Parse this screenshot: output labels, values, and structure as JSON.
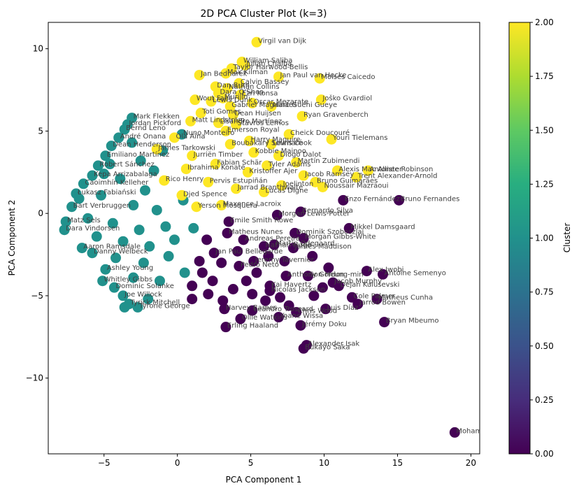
{
  "chart_data": {
    "type": "scatter",
    "title": "2D PCA Cluster Plot (k=3)",
    "xlabel": "PCA Component 1",
    "ylabel": "PCA Component 2",
    "xlim": [
      -8.8,
      20.6
    ],
    "ylim": [
      -14.6,
      11.6
    ],
    "xticks": [
      -5,
      0,
      5,
      10,
      15,
      20
    ],
    "yticks": [
      -10,
      -5,
      0,
      5,
      10
    ],
    "xtick_labels": [
      "−5",
      "0",
      "5",
      "10",
      "15",
      "20"
    ],
    "ytick_labels": [
      "−10",
      "−5",
      "0",
      "5",
      "10"
    ],
    "grid": false,
    "colormap": "viridis",
    "colorbar": {
      "label": "Cluster",
      "range": [
        0,
        2
      ],
      "ticks": [
        0,
        0.25,
        0.5,
        0.75,
        1.0,
        1.25,
        1.5,
        1.75,
        2.0
      ],
      "tick_labels": [
        "0.00",
        "0.25",
        "0.50",
        "0.75",
        "1.00",
        "1.25",
        "1.50",
        "1.75",
        "2.00"
      ]
    },
    "cluster_colors": [
      "#440154",
      "#21918c",
      "#fde725"
    ],
    "points": [
      {
        "x": 5.4,
        "y": 10.4,
        "cluster": 2,
        "label": "Virgil van Dijk"
      },
      {
        "x": 4.4,
        "y": 9.2,
        "cluster": 2,
        "label": "William Saliba"
      },
      {
        "x": 4.6,
        "y": 9.0,
        "cluster": 2,
        "label": "Julian Chalba"
      },
      {
        "x": 3.7,
        "y": 8.8,
        "cluster": 2,
        "label": "Taylor Harwood-Bellis"
      },
      {
        "x": 1.5,
        "y": 8.4,
        "cluster": 2,
        "label": "Jan Bednarek"
      },
      {
        "x": 3.3,
        "y": 8.5,
        "cluster": 2,
        "label": "Max Kilman"
      },
      {
        "x": 6.9,
        "y": 8.3,
        "cluster": 2,
        "label": "Jan Paul van Hecke"
      },
      {
        "x": 9.7,
        "y": 8.2,
        "cluster": 2,
        "label": "Moisés Caicedo"
      },
      {
        "x": 4.2,
        "y": 7.9,
        "cluster": 2,
        "label": "Calvin Bassey"
      },
      {
        "x": 2.6,
        "y": 7.7,
        "cluster": 2,
        "label": "Dan Burn"
      },
      {
        "x": 3.4,
        "y": 7.6,
        "cluster": 2,
        "label": "Nathan Collins"
      },
      {
        "x": 2.8,
        "y": 7.3,
        "cluster": 2,
        "label": "Dara O'Shea"
      },
      {
        "x": 4.3,
        "y": 7.2,
        "cluster": 2,
        "label": "Ezri Konsa"
      },
      {
        "x": 3.1,
        "y": 7.0,
        "cluster": 2,
        "label": "Murillo"
      },
      {
        "x": 1.2,
        "y": 6.9,
        "cluster": 2,
        "label": "Wout Faes"
      },
      {
        "x": 9.8,
        "y": 6.9,
        "cluster": 2,
        "label": "Joško Gvardiol"
      },
      {
        "x": 2.3,
        "y": 6.8,
        "cluster": 2,
        "label": "Lewis Dunk"
      },
      {
        "x": 5.1,
        "y": 6.7,
        "cluster": 2,
        "label": "Oscar Mezarate"
      },
      {
        "x": 3.6,
        "y": 6.5,
        "cluster": 2,
        "label": "Gabriel Magalhães"
      },
      {
        "x": 6.4,
        "y": 6.5,
        "cluster": 2,
        "label": "Marc Guéhi Gueye"
      },
      {
        "x": 1.6,
        "y": 6.1,
        "cluster": 2,
        "label": "Toti Gomes"
      },
      {
        "x": 3.8,
        "y": 6.0,
        "cluster": 2,
        "label": "Dean Huijsen"
      },
      {
        "x": 8.5,
        "y": 5.9,
        "cluster": 2,
        "label": "Ryan Gravenberch"
      },
      {
        "x": 0.9,
        "y": 5.6,
        "cluster": 2,
        "label": "Matt Lindström"
      },
      {
        "x": 2.8,
        "y": 5.5,
        "cluster": 2,
        "label": "Lisandro Martínez"
      },
      {
        "x": 4.0,
        "y": 5.4,
        "cluster": 2,
        "label": "Stávros Lemos"
      },
      {
        "x": 7.6,
        "y": 4.8,
        "cluster": 2,
        "label": "Cheick Doucouré"
      },
      {
        "x": 10.5,
        "y": 4.5,
        "cluster": 2,
        "label": "Youri Tielemans"
      },
      {
        "x": 6.4,
        "y": 4.2,
        "cluster": 2,
        "label": "Lewis Cook"
      },
      {
        "x": 3.6,
        "y": 4.2,
        "cluster": 2,
        "label": "Boubakary Soumaré"
      },
      {
        "x": 5.2,
        "y": 3.7,
        "cluster": 2,
        "label": "Kobbie Mainoo"
      },
      {
        "x": 6.9,
        "y": 3.5,
        "cluster": 2,
        "label": "Diogo Dalot"
      },
      {
        "x": 8.1,
        "y": 3.1,
        "cluster": 2,
        "label": "Martín Zubimendi"
      },
      {
        "x": 10.9,
        "y": 2.6,
        "cluster": 2,
        "label": "Alexis Mac Allister"
      },
      {
        "x": 13.0,
        "y": 2.6,
        "cluster": 2,
        "label": "Antonee Robinson"
      },
      {
        "x": 12.2,
        "y": 2.2,
        "cluster": 2,
        "label": "Trent Alexander-Arnold"
      },
      {
        "x": 9.4,
        "y": 1.9,
        "cluster": 2,
        "label": "Bruno Guimarães"
      },
      {
        "x": 7.1,
        "y": 1.7,
        "cluster": 2,
        "label": "Joelinton"
      },
      {
        "x": 9.9,
        "y": 1.6,
        "cluster": 2,
        "label": "Noussair Mazraoui"
      },
      {
        "x": 4.0,
        "y": 1.5,
        "cluster": 2,
        "label": "Jarrad Branthwaite"
      },
      {
        "x": 2.1,
        "y": 1.9,
        "cluster": 2,
        "label": "Pervis Estupiñán"
      },
      {
        "x": 0.6,
        "y": 2.7,
        "cluster": 2,
        "label": "Ibrahima Konaté"
      },
      {
        "x": 5.9,
        "y": 1.3,
        "cluster": 2,
        "label": "Lucas Digne"
      },
      {
        "x": 1.0,
        "y": 3.5,
        "cluster": 2,
        "label": "Jurriën Timber"
      },
      {
        "x": -0.2,
        "y": 4.6,
        "cluster": 2,
        "label": "Ola Aina"
      },
      {
        "x": -1.4,
        "y": 3.9,
        "cluster": 2,
        "label": "James Tarkowski"
      },
      {
        "x": 0.3,
        "y": 1.1,
        "cluster": 2,
        "label": "Djed Spence"
      },
      {
        "x": 2.6,
        "y": 3.0,
        "cluster": 2,
        "label": "Fabian Schär"
      },
      {
        "x": 4.8,
        "y": 2.5,
        "cluster": 2,
        "label": "Kristoffer Ajer"
      },
      {
        "x": 6.1,
        "y": 2.9,
        "cluster": 2,
        "label": "Tyler Adams"
      },
      {
        "x": 8.6,
        "y": 2.3,
        "cluster": 2,
        "label": "Jacob Ramsey"
      },
      {
        "x": 3.0,
        "y": 0.5,
        "cluster": 2,
        "label": "Maxence Lacroix"
      },
      {
        "x": 1.3,
        "y": 0.4,
        "cluster": 2,
        "label": "Yerson Mosquera"
      },
      {
        "x": -0.9,
        "y": 2.0,
        "cluster": 2,
        "label": "Rico Henry"
      },
      {
        "x": 3.3,
        "y": 5.0,
        "cluster": 2,
        "label": "Emerson Royal"
      },
      {
        "x": 4.9,
        "y": 4.4,
        "cluster": 2,
        "label": "Harry Maguire"
      },
      {
        "x": 0.3,
        "y": 4.8,
        "cluster": 1,
        "label": "Nuno Monteiro"
      },
      {
        "x": -3.1,
        "y": 5.8,
        "cluster": 1,
        "label": "Mark Flekken"
      },
      {
        "x": -3.4,
        "y": 5.4,
        "cluster": 1,
        "label": "Jordan Pickford"
      },
      {
        "x": -3.6,
        "y": 5.1,
        "cluster": 1,
        "label": "Bernd Leno"
      },
      {
        "x": -4.0,
        "y": 4.6,
        "cluster": 1,
        "label": "André Onana"
      },
      {
        "x": -4.5,
        "y": 4.1,
        "cluster": 1,
        "label": "Dean Henderson"
      },
      {
        "x": -4.9,
        "y": 3.5,
        "cluster": 1,
        "label": "Emiliano Martínez"
      },
      {
        "x": -5.4,
        "y": 2.9,
        "cluster": 1,
        "label": "Robert Sánchez"
      },
      {
        "x": -5.8,
        "y": 2.3,
        "cluster": 1,
        "label": "Kepa Arrizabalaga"
      },
      {
        "x": -6.4,
        "y": 1.8,
        "cluster": 1,
        "label": "Caoimhín Kelleher"
      },
      {
        "x": -6.9,
        "y": 1.2,
        "cluster": 1,
        "label": "Łukasz Fabiański"
      },
      {
        "x": -7.2,
        "y": 0.4,
        "cluster": 1,
        "label": "Bart Verbruggen"
      },
      {
        "x": -7.6,
        "y": -0.5,
        "cluster": 1,
        "label": "Matz Sels"
      },
      {
        "x": -7.7,
        "y": -1.0,
        "cluster": 1,
        "label": "Dara Vindorsen"
      },
      {
        "x": -6.5,
        "y": -2.1,
        "cluster": 1,
        "label": "Aaron Ramsdale"
      },
      {
        "x": -5.8,
        "y": -2.4,
        "cluster": 1,
        "label": "Danny Welbeck"
      },
      {
        "x": -4.9,
        "y": -3.4,
        "cluster": 1,
        "label": "Ashley Young"
      },
      {
        "x": -5.1,
        "y": -4.1,
        "cluster": 1,
        "label": "Whitley Gibbs"
      },
      {
        "x": -4.3,
        "y": -4.5,
        "cluster": 1,
        "label": "Dominic Solanke"
      },
      {
        "x": -3.7,
        "y": -5.0,
        "cluster": 1,
        "label": "Joe Willock"
      },
      {
        "x": -3.3,
        "y": -5.5,
        "cluster": 1,
        "label": "Tyrick Mitchell"
      },
      {
        "x": -2.7,
        "y": -5.7,
        "cluster": 1,
        "label": "Tyrone George"
      },
      {
        "x": -3.6,
        "y": -5.7,
        "cluster": 1,
        "label": ""
      },
      {
        "x": -2.0,
        "y": -5.2,
        "cluster": 1,
        "label": ""
      },
      {
        "x": -4.6,
        "y": 3.0,
        "cluster": 1,
        "label": ""
      },
      {
        "x": -3.1,
        "y": 4.3,
        "cluster": 1,
        "label": ""
      },
      {
        "x": -2.5,
        "y": 3.2,
        "cluster": 1,
        "label": ""
      },
      {
        "x": -3.9,
        "y": 2.1,
        "cluster": 1,
        "label": ""
      },
      {
        "x": -2.2,
        "y": 1.4,
        "cluster": 1,
        "label": ""
      },
      {
        "x": -5.2,
        "y": 1.1,
        "cluster": 1,
        "label": ""
      },
      {
        "x": -3.0,
        "y": 0.5,
        "cluster": 1,
        "label": ""
      },
      {
        "x": -1.4,
        "y": 0.2,
        "cluster": 1,
        "label": ""
      },
      {
        "x": -6.1,
        "y": -0.3,
        "cluster": 1,
        "label": ""
      },
      {
        "x": -4.4,
        "y": -0.6,
        "cluster": 1,
        "label": ""
      },
      {
        "x": -2.6,
        "y": -1.0,
        "cluster": 1,
        "label": ""
      },
      {
        "x": -0.8,
        "y": -0.8,
        "cluster": 1,
        "label": ""
      },
      {
        "x": -5.5,
        "y": -1.4,
        "cluster": 1,
        "label": ""
      },
      {
        "x": -3.7,
        "y": -1.7,
        "cluster": 1,
        "label": ""
      },
      {
        "x": -1.9,
        "y": -2.0,
        "cluster": 1,
        "label": ""
      },
      {
        "x": -0.2,
        "y": -1.6,
        "cluster": 1,
        "label": ""
      },
      {
        "x": -4.2,
        "y": -2.7,
        "cluster": 1,
        "label": ""
      },
      {
        "x": -2.3,
        "y": -3.0,
        "cluster": 1,
        "label": ""
      },
      {
        "x": -0.6,
        "y": -2.6,
        "cluster": 1,
        "label": ""
      },
      {
        "x": -3.0,
        "y": -3.9,
        "cluster": 1,
        "label": ""
      },
      {
        "x": -1.2,
        "y": -4.1,
        "cluster": 1,
        "label": ""
      },
      {
        "x": 0.5,
        "y": -3.6,
        "cluster": 1,
        "label": ""
      },
      {
        "x": -1.6,
        "y": 2.6,
        "cluster": 1,
        "label": ""
      },
      {
        "x": 0.4,
        "y": 0.8,
        "cluster": 1,
        "label": ""
      },
      {
        "x": 1.1,
        "y": -0.9,
        "cluster": 1,
        "label": ""
      },
      {
        "x": -6.7,
        "y": 0.9,
        "cluster": 1,
        "label": ""
      },
      {
        "x": -5.0,
        "y": 2.4,
        "cluster": 1,
        "label": ""
      },
      {
        "x": -1.0,
        "y": 3.8,
        "cluster": 1,
        "label": ""
      },
      {
        "x": 18.9,
        "y": -13.3,
        "cluster": 0,
        "label": "Mohamed Salah"
      },
      {
        "x": 15.1,
        "y": 0.8,
        "cluster": 0,
        "label": "Bruno Fernandes"
      },
      {
        "x": 11.3,
        "y": 0.8,
        "cluster": 0,
        "label": "Enzo Fernández"
      },
      {
        "x": 8.4,
        "y": 0.1,
        "cluster": 0,
        "label": "Bernardo Silva"
      },
      {
        "x": 6.8,
        "y": -0.1,
        "cluster": 0,
        "label": "Morgan Lewis-Potter"
      },
      {
        "x": 3.5,
        "y": -0.5,
        "cluster": 0,
        "label": "Emile Smith Rowe"
      },
      {
        "x": 11.7,
        "y": -0.9,
        "cluster": 0,
        "label": "Mikkel Damsgaard"
      },
      {
        "x": 8.0,
        "y": -1.2,
        "cluster": 0,
        "label": "Dominik Szoboszlai"
      },
      {
        "x": 8.6,
        "y": -1.5,
        "cluster": 0,
        "label": "Morgan Gibbs-White"
      },
      {
        "x": 6.6,
        "y": -1.9,
        "cluster": 0,
        "label": "Martin Ødegaard"
      },
      {
        "x": 5.9,
        "y": -2.0,
        "cluster": 0,
        "label": "Nathan Hugo"
      },
      {
        "x": 7.9,
        "y": -2.1,
        "cluster": 0,
        "label": "James Maddison"
      },
      {
        "x": 3.4,
        "y": -1.2,
        "cluster": 0,
        "label": "Matheus Nunes"
      },
      {
        "x": 4.5,
        "y": -1.6,
        "cluster": 0,
        "label": "Andreas Pereira"
      },
      {
        "x": 2.5,
        "y": -2.4,
        "cluster": 0,
        "label": "Jan Paul Bellegarde"
      },
      {
        "x": 5.2,
        "y": -2.9,
        "cluster": 0,
        "label": "Jeremy Tavernier"
      },
      {
        "x": 4.2,
        "y": -3.2,
        "cluster": 0,
        "label": "Pedro Neto"
      },
      {
        "x": 12.9,
        "y": -3.5,
        "cluster": 0,
        "label": "Alex Iwobi"
      },
      {
        "x": 14.0,
        "y": -3.7,
        "cluster": 0,
        "label": "Antoine Semenyo"
      },
      {
        "x": 7.4,
        "y": -3.8,
        "cluster": 0,
        "label": "Anthony Gordon"
      },
      {
        "x": 8.9,
        "y": -3.8,
        "cluster": 0,
        "label": "Son Heung-min"
      },
      {
        "x": 10.6,
        "y": -4.2,
        "cluster": 0,
        "label": "Jacob Murphy"
      },
      {
        "x": 11.0,
        "y": -4.4,
        "cluster": 0,
        "label": "Dejan Kulusevski"
      },
      {
        "x": 6.3,
        "y": -4.7,
        "cluster": 0,
        "label": "Nicolas Jackson"
      },
      {
        "x": 11.9,
        "y": -5.1,
        "cluster": 0,
        "label": "Cole Palmer"
      },
      {
        "x": 13.6,
        "y": -5.2,
        "cluster": 0,
        "label": "Matheus Cunha"
      },
      {
        "x": 12.3,
        "y": -5.5,
        "cluster": 0,
        "label": "Jarrod Bowen"
      },
      {
        "x": 3.2,
        "y": -5.8,
        "cluster": 0,
        "label": "Harvey Barnes"
      },
      {
        "x": 5.1,
        "y": -5.9,
        "cluster": 0,
        "label": "Leandro Trossard"
      },
      {
        "x": 8.1,
        "y": -6.0,
        "cluster": 0,
        "label": "Chris Wood"
      },
      {
        "x": 10.1,
        "y": -5.8,
        "cluster": 0,
        "label": "Luis Díaz"
      },
      {
        "x": 14.1,
        "y": -6.6,
        "cluster": 0,
        "label": "Bryan Mbeumo"
      },
      {
        "x": 4.3,
        "y": -6.4,
        "cluster": 0,
        "label": "Ollie Watkins"
      },
      {
        "x": 6.9,
        "y": -6.3,
        "cluster": 0,
        "label": "Yoane Wissa"
      },
      {
        "x": 8.4,
        "y": -6.8,
        "cluster": 0,
        "label": "Jérémy Doku"
      },
      {
        "x": 3.3,
        "y": -6.9,
        "cluster": 0,
        "label": "Erling Haaland"
      },
      {
        "x": 8.8,
        "y": -8.0,
        "cluster": 0,
        "label": "Alexander Isak"
      },
      {
        "x": 8.6,
        "y": -8.2,
        "cluster": 0,
        "label": "Bukayo Saka"
      },
      {
        "x": 6.3,
        "y": -4.4,
        "cluster": 0,
        "label": "Kai Havertz"
      },
      {
        "x": 1.7,
        "y": -3.6,
        "cluster": 0,
        "label": ""
      },
      {
        "x": 2.4,
        "y": -4.1,
        "cluster": 0,
        "label": ""
      },
      {
        "x": 1.0,
        "y": -4.4,
        "cluster": 0,
        "label": ""
      },
      {
        "x": 2.1,
        "y": -4.9,
        "cluster": 0,
        "label": ""
      },
      {
        "x": 1.0,
        "y": -5.2,
        "cluster": 0,
        "label": ""
      },
      {
        "x": 3.8,
        "y": -4.6,
        "cluster": 0,
        "label": ""
      },
      {
        "x": 3.1,
        "y": -5.3,
        "cluster": 0,
        "label": ""
      },
      {
        "x": 4.7,
        "y": -4.1,
        "cluster": 0,
        "label": ""
      },
      {
        "x": 5.1,
        "y": -4.9,
        "cluster": 0,
        "label": ""
      },
      {
        "x": 6.0,
        "y": -5.3,
        "cluster": 0,
        "label": ""
      },
      {
        "x": 7.0,
        "y": -5.1,
        "cluster": 0,
        "label": ""
      },
      {
        "x": 7.6,
        "y": -5.6,
        "cluster": 0,
        "label": ""
      },
      {
        "x": 9.3,
        "y": -5.0,
        "cluster": 0,
        "label": ""
      },
      {
        "x": 9.9,
        "y": -4.5,
        "cluster": 0,
        "label": ""
      },
      {
        "x": 5.4,
        "y": -3.6,
        "cluster": 0,
        "label": ""
      },
      {
        "x": 3.0,
        "y": -3.0,
        "cluster": 0,
        "label": ""
      },
      {
        "x": 1.5,
        "y": -2.9,
        "cluster": 0,
        "label": ""
      },
      {
        "x": 4.1,
        "y": -2.3,
        "cluster": 0,
        "label": ""
      },
      {
        "x": 2.0,
        "y": -1.6,
        "cluster": 0,
        "label": ""
      },
      {
        "x": 6.2,
        "y": -2.6,
        "cluster": 0,
        "label": ""
      },
      {
        "x": 9.2,
        "y": -2.6,
        "cluster": 0,
        "label": ""
      },
      {
        "x": 10.3,
        "y": -3.3,
        "cluster": 0,
        "label": ""
      },
      {
        "x": 7.3,
        "y": -2.9,
        "cluster": 0,
        "label": ""
      }
    ]
  }
}
